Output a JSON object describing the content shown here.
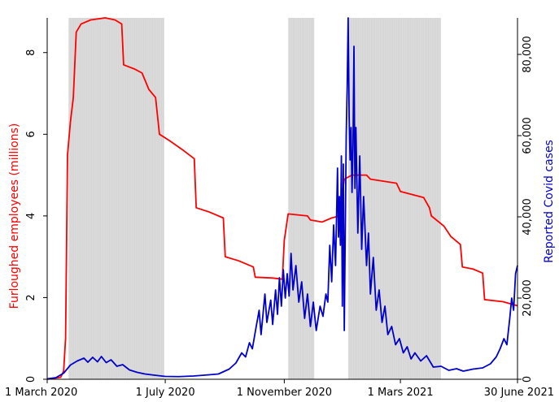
{
  "chart_data": {
    "type": "line",
    "title": "",
    "xlabel": "",
    "ylabel_left": "Furloughed employees (millions)",
    "ylabel_right": "Reported Covid  cases",
    "x_tick_labels": [
      "1 March 2020",
      "1 July 2020",
      "1 November 2020",
      "1 Mars 2021",
      "30 June 2021"
    ],
    "x_tick_dates": [
      "2020-03-01",
      "2020-07-01",
      "2020-11-01",
      "2021-03-01",
      "2021-06-30"
    ],
    "xlim": [
      "2020-03-01",
      "2021-06-30"
    ],
    "y_left_ticks": [
      "0",
      "2",
      "4",
      "6",
      "8"
    ],
    "y_left_lim": [
      0,
      8.85
    ],
    "y_right_ticks": [
      "0",
      "20,000",
      "40,000",
      "60,000",
      "80,000"
    ],
    "y_right_lim": [
      0,
      89000
    ],
    "grid": false,
    "colors": {
      "furlough": "#ff0000",
      "cases": "#0000cc",
      "shading": "#dcdcdc"
    },
    "shaded_periods": [
      {
        "start": "2020-03-23",
        "end": "2020-06-30"
      },
      {
        "start": "2020-11-05",
        "end": "2020-12-02"
      },
      {
        "start": "2021-01-06",
        "end": "2021-04-12"
      }
    ],
    "series": [
      {
        "name": "Furloughed employees (millions)",
        "axis": "left",
        "color": "#ff0000",
        "points": [
          [
            "2020-03-01",
            0.0
          ],
          [
            "2020-03-15",
            0.05
          ],
          [
            "2020-03-18",
            0.2
          ],
          [
            "2020-03-20",
            1.0
          ],
          [
            "2020-03-22",
            5.5
          ],
          [
            "2020-03-25",
            6.3
          ],
          [
            "2020-03-28",
            6.9
          ],
          [
            "2020-03-31",
            8.5
          ],
          [
            "2020-04-05",
            8.7
          ],
          [
            "2020-04-15",
            8.8
          ],
          [
            "2020-04-30",
            8.85
          ],
          [
            "2020-05-10",
            8.8
          ],
          [
            "2020-05-17",
            8.7
          ],
          [
            "2020-05-19",
            7.7
          ],
          [
            "2020-05-30",
            7.6
          ],
          [
            "2020-06-07",
            7.5
          ],
          [
            "2020-06-14",
            7.1
          ],
          [
            "2020-06-21",
            6.9
          ],
          [
            "2020-06-25",
            6.0
          ],
          [
            "2020-07-05",
            5.85
          ],
          [
            "2020-07-20",
            5.6
          ],
          [
            "2020-07-31",
            5.4
          ],
          [
            "2020-08-02",
            4.2
          ],
          [
            "2020-08-15",
            4.1
          ],
          [
            "2020-08-30",
            3.95
          ],
          [
            "2020-09-01",
            3.0
          ],
          [
            "2020-09-15",
            2.9
          ],
          [
            "2020-09-30",
            2.75
          ],
          [
            "2020-10-02",
            2.5
          ],
          [
            "2020-10-20",
            2.48
          ],
          [
            "2020-10-30",
            2.45
          ],
          [
            "2020-11-01",
            3.4
          ],
          [
            "2020-11-05",
            4.05
          ],
          [
            "2020-11-25",
            4.0
          ],
          [
            "2020-11-28",
            3.9
          ],
          [
            "2020-12-10",
            3.85
          ],
          [
            "2020-12-20",
            3.95
          ],
          [
            "2020-12-28",
            4.0
          ],
          [
            "2021-01-02",
            4.9
          ],
          [
            "2021-01-10",
            5.0
          ],
          [
            "2021-01-25",
            5.0
          ],
          [
            "2021-01-29",
            4.9
          ],
          [
            "2021-02-25",
            4.8
          ],
          [
            "2021-03-01",
            4.6
          ],
          [
            "2021-03-25",
            4.45
          ],
          [
            "2021-03-31",
            4.2
          ],
          [
            "2021-04-02",
            4.0
          ],
          [
            "2021-04-15",
            3.75
          ],
          [
            "2021-04-22",
            3.5
          ],
          [
            "2021-05-02",
            3.3
          ],
          [
            "2021-05-04",
            2.75
          ],
          [
            "2021-05-15",
            2.7
          ],
          [
            "2021-05-25",
            2.6
          ],
          [
            "2021-05-27",
            1.95
          ],
          [
            "2021-06-15",
            1.9
          ],
          [
            "2021-06-30",
            1.8
          ]
        ]
      },
      {
        "name": "Reported Covid  cases",
        "axis": "right",
        "color": "#0000cc",
        "points": [
          [
            "2020-03-01",
            100
          ],
          [
            "2020-03-10",
            400
          ],
          [
            "2020-03-18",
            1500
          ],
          [
            "2020-03-25",
            3500
          ],
          [
            "2020-04-01",
            4500
          ],
          [
            "2020-04-08",
            5200
          ],
          [
            "2020-04-12",
            4200
          ],
          [
            "2020-04-17",
            5400
          ],
          [
            "2020-04-22",
            4300
          ],
          [
            "2020-04-26",
            5600
          ],
          [
            "2020-05-01",
            4100
          ],
          [
            "2020-05-06",
            4800
          ],
          [
            "2020-05-12",
            3200
          ],
          [
            "2020-05-18",
            3600
          ],
          [
            "2020-05-25",
            2300
          ],
          [
            "2020-06-02",
            1700
          ],
          [
            "2020-06-10",
            1300
          ],
          [
            "2020-06-20",
            1000
          ],
          [
            "2020-07-01",
            700
          ],
          [
            "2020-07-15",
            650
          ],
          [
            "2020-07-30",
            800
          ],
          [
            "2020-08-10",
            1000
          ],
          [
            "2020-08-25",
            1300
          ],
          [
            "2020-09-05",
            2500
          ],
          [
            "2020-09-12",
            4000
          ],
          [
            "2020-09-18",
            6500
          ],
          [
            "2020-09-22",
            5500
          ],
          [
            "2020-09-26",
            9000
          ],
          [
            "2020-09-29",
            7500
          ],
          [
            "2020-10-03",
            13000
          ],
          [
            "2020-10-06",
            17000
          ],
          [
            "2020-10-08",
            11000
          ],
          [
            "2020-10-12",
            21000
          ],
          [
            "2020-10-14",
            14000
          ],
          [
            "2020-10-18",
            19500
          ],
          [
            "2020-10-20",
            13500
          ],
          [
            "2020-10-23",
            22000
          ],
          [
            "2020-10-25",
            16000
          ],
          [
            "2020-10-27",
            25000
          ],
          [
            "2020-10-29",
            18000
          ],
          [
            "2020-10-31",
            27000
          ],
          [
            "2020-11-02",
            20000
          ],
          [
            "2020-11-04",
            26000
          ],
          [
            "2020-11-06",
            20500
          ],
          [
            "2020-11-08",
            31000
          ],
          [
            "2020-11-10",
            22000
          ],
          [
            "2020-11-13",
            28000
          ],
          [
            "2020-11-16",
            19000
          ],
          [
            "2020-11-19",
            24000
          ],
          [
            "2020-11-22",
            15000
          ],
          [
            "2020-11-25",
            21000
          ],
          [
            "2020-11-28",
            13000
          ],
          [
            "2020-12-01",
            19000
          ],
          [
            "2020-12-04",
            12000
          ],
          [
            "2020-12-08",
            18000
          ],
          [
            "2020-12-11",
            15500
          ],
          [
            "2020-12-14",
            21000
          ],
          [
            "2020-12-16",
            19000
          ],
          [
            "2020-12-18",
            33000
          ],
          [
            "2020-12-20",
            24000
          ],
          [
            "2020-12-22",
            38000
          ],
          [
            "2020-12-24",
            28000
          ],
          [
            "2020-12-26",
            52000
          ],
          [
            "2020-12-27",
            35000
          ],
          [
            "2020-12-28",
            45000
          ],
          [
            "2020-12-29",
            33000
          ],
          [
            "2020-12-30",
            55000
          ],
          [
            "2020-12-31",
            18000
          ],
          [
            "2021-01-01",
            53000
          ],
          [
            "2021-01-02",
            12000
          ],
          [
            "2021-01-04",
            60000
          ],
          [
            "2021-01-05",
            72000
          ],
          [
            "2021-01-06",
            89000
          ],
          [
            "2021-01-07",
            65000
          ],
          [
            "2021-01-08",
            54000
          ],
          [
            "2021-01-09",
            62000
          ],
          [
            "2021-01-10",
            46000
          ],
          [
            "2021-01-11",
            57000
          ],
          [
            "2021-01-12",
            82000
          ],
          [
            "2021-01-13",
            47000
          ],
          [
            "2021-01-14",
            62000
          ],
          [
            "2021-01-16",
            36000
          ],
          [
            "2021-01-18",
            55000
          ],
          [
            "2021-01-20",
            32000
          ],
          [
            "2021-01-22",
            45000
          ],
          [
            "2021-01-25",
            28000
          ],
          [
            "2021-01-27",
            36000
          ],
          [
            "2021-01-29",
            21000
          ],
          [
            "2021-02-01",
            30000
          ],
          [
            "2021-02-04",
            17000
          ],
          [
            "2021-02-07",
            22000
          ],
          [
            "2021-02-10",
            14000
          ],
          [
            "2021-02-13",
            18000
          ],
          [
            "2021-02-16",
            11000
          ],
          [
            "2021-02-20",
            13000
          ],
          [
            "2021-02-24",
            8500
          ],
          [
            "2021-02-28",
            10000
          ],
          [
            "2021-03-04",
            6500
          ],
          [
            "2021-03-08",
            8000
          ],
          [
            "2021-03-12",
            5000
          ],
          [
            "2021-03-16",
            6500
          ],
          [
            "2021-03-22",
            4500
          ],
          [
            "2021-03-28",
            5800
          ],
          [
            "2021-04-04",
            3000
          ],
          [
            "2021-04-12",
            3200
          ],
          [
            "2021-04-20",
            2200
          ],
          [
            "2021-04-28",
            2600
          ],
          [
            "2021-05-05",
            2000
          ],
          [
            "2021-05-15",
            2500
          ],
          [
            "2021-05-25",
            2800
          ],
          [
            "2021-06-02",
            3800
          ],
          [
            "2021-06-08",
            5500
          ],
          [
            "2021-06-12",
            7500
          ],
          [
            "2021-06-16",
            10000
          ],
          [
            "2021-06-19",
            8500
          ],
          [
            "2021-06-22",
            15000
          ],
          [
            "2021-06-24",
            20000
          ],
          [
            "2021-06-26",
            17000
          ],
          [
            "2021-06-28",
            26000
          ],
          [
            "2021-06-30",
            28000
          ]
        ]
      }
    ]
  }
}
